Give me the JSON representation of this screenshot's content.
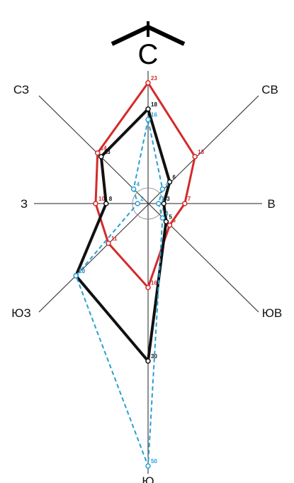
{
  "directions": {
    "north": "С",
    "northeast": "СВ",
    "east": "В",
    "southeast": "ЮВ",
    "south": "Ю",
    "southwest": "ЮЗ",
    "west": "З",
    "northwest": "СЗ"
  },
  "colors": {
    "red": "#d42a2a",
    "black": "#111111",
    "blue": "#2a9fd4",
    "axis": "#222222"
  },
  "chart_data": {
    "type": "radar",
    "axes": [
      "С",
      "СВ",
      "В",
      "ЮВ",
      "Ю",
      "ЮЗ",
      "З",
      "СЗ"
    ],
    "series": [
      {
        "color": "red",
        "style": "solid",
        "values": [
          23,
          13,
          7,
          6,
          16,
          11,
          10,
          14
        ]
      },
      {
        "color": "black",
        "style": "solid",
        "values": [
          18,
          6,
          3,
          5,
          30,
          20,
          8,
          13
        ]
      },
      {
        "color": "blue",
        "style": "dashed",
        "values": [
          16,
          4,
          2,
          4,
          50,
          20,
          2,
          4
        ]
      }
    ]
  }
}
